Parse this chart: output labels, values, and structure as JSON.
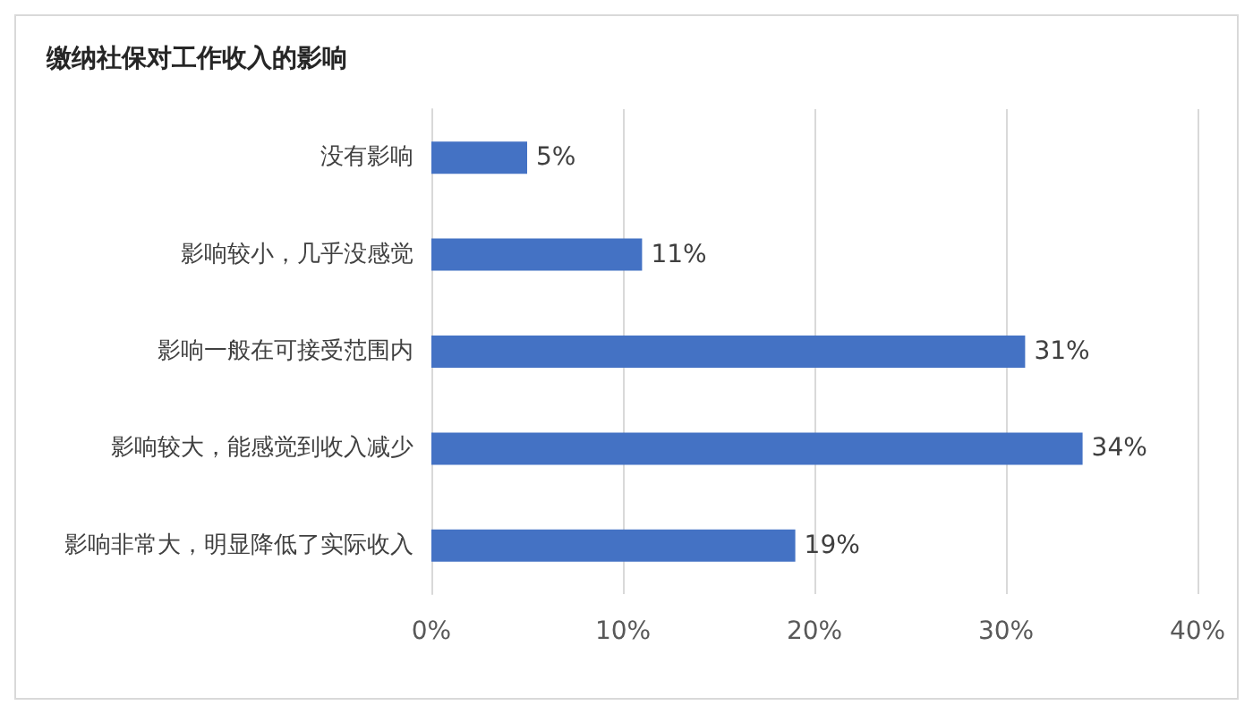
{
  "chart_data": {
    "type": "bar",
    "orientation": "horizontal",
    "title": "缴纳社保对工作收入的影响",
    "categories": [
      "没有影响",
      "影响较小，几乎没感觉",
      "影响一般在可接受范围内",
      "影响较大，能感觉到收入减少",
      "影响非常大，明显降低了实际收入"
    ],
    "values": [
      5,
      11,
      31,
      34,
      19
    ],
    "color": "#4472c4",
    "value_labels": [
      "5%",
      "11%",
      "31%",
      "34%",
      "19%"
    ],
    "xlim": [
      0,
      40
    ],
    "xticks": [
      {
        "value": 0,
        "label": "0%"
      },
      {
        "value": 10,
        "label": "10%"
      },
      {
        "value": 20,
        "label": "20%"
      },
      {
        "value": 30,
        "label": "30%"
      },
      {
        "value": 40,
        "label": "40%"
      }
    ],
    "grid": "x"
  }
}
